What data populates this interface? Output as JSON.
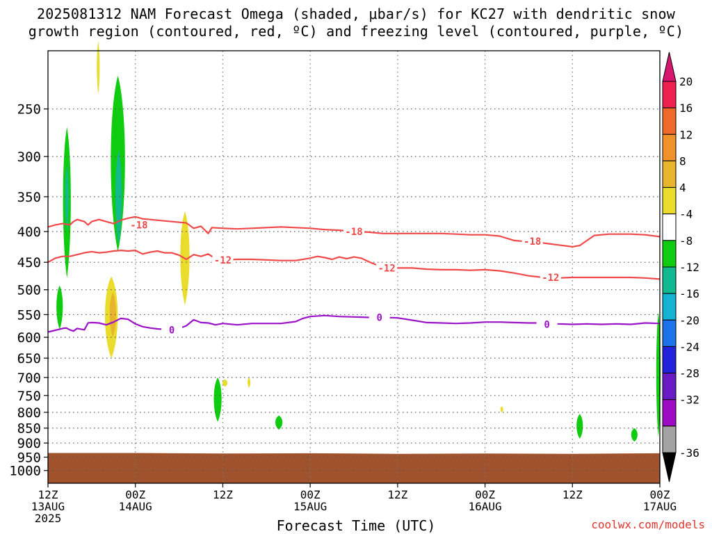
{
  "title": {
    "line1": "2025081312 NAM Forecast Omega (shaded, μbar/s) for KC27 with dendritic snow",
    "line2": "growth region (contoured, red, ºC) and freezing level (contoured, purple, ºC)"
  },
  "chart_data": {
    "type": "contour",
    "xlabel": "Forecast Time (UTC)",
    "x_range_hours": [
      0,
      84
    ],
    "x_ticks": [
      {
        "hour": 0,
        "lines": [
          "12Z",
          "13AUG",
          "2025"
        ]
      },
      {
        "hour": 12,
        "lines": [
          "00Z",
          "14AUG"
        ]
      },
      {
        "hour": 24,
        "lines": [
          "12Z"
        ]
      },
      {
        "hour": 36,
        "lines": [
          "00Z",
          "15AUG"
        ]
      },
      {
        "hour": 48,
        "lines": [
          "12Z"
        ]
      },
      {
        "hour": 60,
        "lines": [
          "00Z",
          "16AUG"
        ]
      },
      {
        "hour": 72,
        "lines": [
          "12Z"
        ]
      },
      {
        "hour": 84,
        "lines": [
          "00Z",
          "17AUG"
        ]
      }
    ],
    "y_axis": {
      "scale": "log-pressure",
      "range_hpa": [
        1050,
        200
      ],
      "ticks": [
        250,
        300,
        350,
        400,
        450,
        500,
        550,
        600,
        650,
        700,
        750,
        800,
        850,
        900,
        950,
        1000
      ]
    },
    "grid": true,
    "colorbar": {
      "labels": [
        "20",
        "16",
        "12",
        "8",
        "4",
        "-4",
        "-8",
        "-12",
        "-16",
        "-20",
        "-24",
        "-28",
        "-32",
        "-36"
      ],
      "colors": [
        "#ef1f4f",
        "#ef6a2a",
        "#ef922a",
        "#e9b42d",
        "#e9dc2d",
        "#ffffff",
        "#10cc10",
        "#11b991",
        "#14b3d3",
        "#1c72e8",
        "#2222dd",
        "#6a1ac4",
        "#9d0cc4",
        "#a3a3a3"
      ],
      "top_arrow_color": "#d7166f",
      "bottom_arrow_color": "#000000"
    },
    "contours": [
      {
        "label": "-18",
        "color": "#f04848",
        "label_positions": [
          {
            "hour": 12.5,
            "hpa": 390
          },
          {
            "hour": 42,
            "hpa": 400
          },
          {
            "hour": 66.5,
            "hpa": 415
          }
        ],
        "points": [
          [
            0,
            393
          ],
          [
            1,
            390
          ],
          [
            2,
            388
          ],
          [
            3,
            390
          ],
          [
            3.5,
            385
          ],
          [
            4,
            382
          ],
          [
            5,
            385
          ],
          [
            5.5,
            390
          ],
          [
            6,
            385
          ],
          [
            7,
            382
          ],
          [
            8,
            385
          ],
          [
            9,
            388
          ],
          [
            10,
            383
          ],
          [
            11,
            380
          ],
          [
            12,
            378
          ],
          [
            13,
            381
          ],
          [
            15,
            383
          ],
          [
            17,
            385
          ],
          [
            19,
            387
          ],
          [
            20,
            395
          ],
          [
            21,
            392
          ],
          [
            22,
            403
          ],
          [
            22.5,
            394
          ],
          [
            24,
            395
          ],
          [
            26,
            396
          ],
          [
            28,
            395
          ],
          [
            30,
            394
          ],
          [
            32,
            393
          ],
          [
            34,
            394
          ],
          [
            36,
            395
          ],
          [
            38,
            397
          ],
          [
            40,
            398
          ],
          [
            42,
            400
          ],
          [
            44,
            401
          ],
          [
            46,
            403
          ],
          [
            48,
            403
          ],
          [
            50,
            403
          ],
          [
            52,
            403
          ],
          [
            54,
            403
          ],
          [
            56,
            404
          ],
          [
            58,
            405
          ],
          [
            60,
            405
          ],
          [
            62,
            407
          ],
          [
            64,
            414
          ],
          [
            66,
            416
          ],
          [
            68,
            418
          ],
          [
            70,
            421
          ],
          [
            72,
            424
          ],
          [
            73,
            422
          ],
          [
            74,
            414
          ],
          [
            75,
            406
          ],
          [
            77,
            404
          ],
          [
            80,
            404
          ],
          [
            82,
            405
          ],
          [
            84,
            408
          ]
        ]
      },
      {
        "label": "-12",
        "color": "#f04848",
        "label_positions": [
          {
            "hour": 24,
            "hpa": 446
          },
          {
            "hour": 46.5,
            "hpa": 460
          },
          {
            "hour": 69,
            "hpa": 477
          }
        ],
        "points": [
          [
            0,
            450
          ],
          [
            1,
            443
          ],
          [
            2,
            440
          ],
          [
            3,
            440
          ],
          [
            4,
            437
          ],
          [
            5,
            434
          ],
          [
            6,
            432
          ],
          [
            7,
            434
          ],
          [
            8,
            433
          ],
          [
            9,
            431
          ],
          [
            10,
            430
          ],
          [
            11,
            431
          ],
          [
            12,
            430
          ],
          [
            13,
            436
          ],
          [
            14,
            433
          ],
          [
            15,
            431
          ],
          [
            16,
            434
          ],
          [
            17,
            434
          ],
          [
            18,
            438
          ],
          [
            19,
            445
          ],
          [
            20,
            437
          ],
          [
            21,
            440
          ],
          [
            22,
            436
          ],
          [
            23,
            444
          ],
          [
            24,
            446
          ],
          [
            26,
            445
          ],
          [
            28,
            445
          ],
          [
            30,
            446
          ],
          [
            32,
            447
          ],
          [
            34,
            447
          ],
          [
            36,
            443
          ],
          [
            37,
            440
          ],
          [
            38,
            442
          ],
          [
            39,
            445
          ],
          [
            40,
            441
          ],
          [
            41,
            444
          ],
          [
            42,
            441
          ],
          [
            43,
            443
          ],
          [
            44,
            449
          ],
          [
            45,
            454
          ],
          [
            46,
            458
          ],
          [
            48,
            460
          ],
          [
            50,
            460
          ],
          [
            52,
            462
          ],
          [
            54,
            463
          ],
          [
            56,
            463
          ],
          [
            58,
            464
          ],
          [
            60,
            463
          ],
          [
            62,
            465
          ],
          [
            64,
            469
          ],
          [
            66,
            474
          ],
          [
            68,
            477
          ],
          [
            70,
            478
          ],
          [
            72,
            477
          ],
          [
            74,
            477
          ],
          [
            76,
            477
          ],
          [
            78,
            477
          ],
          [
            80,
            477
          ],
          [
            82,
            478
          ],
          [
            84,
            480
          ]
        ]
      },
      {
        "label": "0",
        "color": "#9b12c8",
        "label_positions": [
          {
            "hour": 17,
            "hpa": 583
          },
          {
            "hour": 45.5,
            "hpa": 556
          },
          {
            "hour": 68.5,
            "hpa": 571
          }
        ],
        "points": [
          [
            0,
            588
          ],
          [
            1,
            584
          ],
          [
            2,
            580
          ],
          [
            2.5,
            579
          ],
          [
            3,
            583
          ],
          [
            3.5,
            586
          ],
          [
            4,
            580
          ],
          [
            5,
            583
          ],
          [
            5.5,
            568
          ],
          [
            6,
            567
          ],
          [
            7,
            568
          ],
          [
            8,
            572
          ],
          [
            9,
            566
          ],
          [
            10,
            558
          ],
          [
            11,
            560
          ],
          [
            12,
            570
          ],
          [
            13,
            576
          ],
          [
            14,
            579
          ],
          [
            15,
            581
          ],
          [
            16,
            582
          ],
          [
            17,
            583
          ],
          [
            18,
            580
          ],
          [
            19,
            574
          ],
          [
            20,
            561
          ],
          [
            21,
            567
          ],
          [
            22,
            568
          ],
          [
            23,
            572
          ],
          [
            24,
            569
          ],
          [
            26,
            572
          ],
          [
            28,
            569
          ],
          [
            30,
            569
          ],
          [
            32,
            569
          ],
          [
            34,
            565
          ],
          [
            35,
            558
          ],
          [
            36,
            554
          ],
          [
            38,
            552
          ],
          [
            40,
            554
          ],
          [
            42,
            555
          ],
          [
            44,
            556
          ],
          [
            46,
            556
          ],
          [
            48,
            557
          ],
          [
            50,
            562
          ],
          [
            52,
            567
          ],
          [
            54,
            568
          ],
          [
            56,
            569
          ],
          [
            58,
            568
          ],
          [
            60,
            566
          ],
          [
            62,
            566
          ],
          [
            64,
            567
          ],
          [
            66,
            568
          ],
          [
            68,
            568
          ],
          [
            70,
            570
          ],
          [
            72,
            571
          ],
          [
            74,
            570
          ],
          [
            76,
            571
          ],
          [
            78,
            570
          ],
          [
            80,
            571
          ],
          [
            82,
            568
          ],
          [
            84,
            569
          ]
        ]
      }
    ],
    "omega_shaded": [
      {
        "level": "-8",
        "color": "#10cc10",
        "cx": 2.6,
        "hpa_top": 268,
        "hpa_bot": 478,
        "halfwidth_hours": 0.55
      },
      {
        "level": "-12",
        "color": "#11b991",
        "cx": 2.6,
        "hpa_top": 310,
        "hpa_bot": 400,
        "halfwidth_hours": 0.25
      },
      {
        "level": "-8",
        "color": "#10cc10",
        "cx": 1.6,
        "hpa_top": 492,
        "hpa_bot": 582,
        "halfwidth_hours": 0.45
      },
      {
        "level": "-8",
        "color": "#10cc10",
        "cx": 9.6,
        "hpa_top": 220,
        "hpa_bot": 432,
        "halfwidth_hours": 1.0
      },
      {
        "level": "-12",
        "color": "#11b991",
        "cx": 9.7,
        "hpa_top": 292,
        "hpa_bot": 420,
        "halfwidth_hours": 0.45
      },
      {
        "level": "4",
        "color": "#e9dc2d",
        "cx": 6.9,
        "hpa_top": 193,
        "hpa_bot": 236,
        "halfwidth_hours": 0.2
      },
      {
        "level": "4",
        "color": "#e9dc2d",
        "cx": 8.7,
        "hpa_top": 475,
        "hpa_bot": 650,
        "halfwidth_hours": 0.9
      },
      {
        "level": "8",
        "color": "#e9b42d",
        "cx": 8.9,
        "hpa_top": 505,
        "hpa_bot": 600,
        "halfwidth_hours": 0.45
      },
      {
        "level": "4",
        "color": "#e9dc2d",
        "cx": 18.8,
        "hpa_top": 370,
        "hpa_bot": 530,
        "halfwidth_hours": 0.65
      },
      {
        "level": "4",
        "color": "#e9dc2d",
        "cx": 24.3,
        "hpa_top": 705,
        "hpa_bot": 725,
        "halfwidth_hours": 0.35
      },
      {
        "level": "4",
        "color": "#e9dc2d",
        "cx": 27.6,
        "hpa_top": 700,
        "hpa_bot": 728,
        "halfwidth_hours": 0.2
      },
      {
        "level": "-8",
        "color": "#10cc10",
        "cx": 23.3,
        "hpa_top": 700,
        "hpa_bot": 830,
        "halfwidth_hours": 0.55
      },
      {
        "level": "-8",
        "color": "#10cc10",
        "cx": 31.7,
        "hpa_top": 810,
        "hpa_bot": 855,
        "halfwidth_hours": 0.5
      },
      {
        "level": "4",
        "color": "#e9dc2d",
        "cx": 62.3,
        "hpa_top": 782,
        "hpa_bot": 800,
        "halfwidth_hours": 0.2
      },
      {
        "level": "-8",
        "color": "#10cc10",
        "cx": 73.0,
        "hpa_top": 805,
        "hpa_bot": 885,
        "halfwidth_hours": 0.45
      },
      {
        "level": "-8",
        "color": "#10cc10",
        "cx": 80.5,
        "hpa_top": 850,
        "hpa_bot": 895,
        "halfwidth_hours": 0.45
      },
      {
        "level": "-8",
        "color": "#10cc10",
        "cx": 83.8,
        "hpa_top": 545,
        "hpa_bot": 880,
        "halfwidth_hours": 0.3
      }
    ],
    "terrain": {
      "color": "#a0522d",
      "surface_profile": [
        [
          0,
          935
        ],
        [
          12,
          935
        ],
        [
          24,
          937
        ],
        [
          36,
          936
        ],
        [
          48,
          938
        ],
        [
          60,
          937
        ],
        [
          72,
          938
        ],
        [
          84,
          936
        ]
      ]
    }
  },
  "watermark": "coolwx.com/models"
}
